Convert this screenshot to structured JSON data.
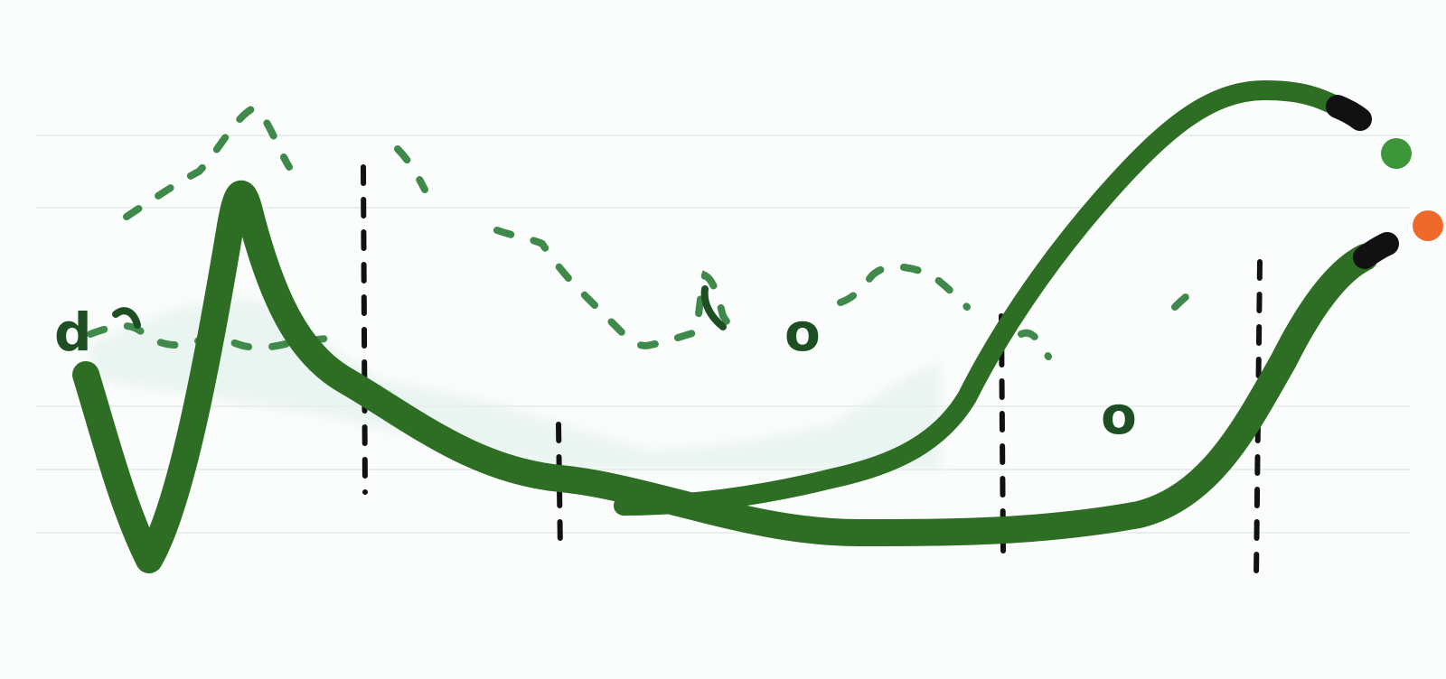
{
  "colors": {
    "background": "#fbfcfc",
    "main_stroke": "#2e6e24",
    "dashed_stroke": "#3f8a4a",
    "haze": "#9fd4c0",
    "divider": "#111111",
    "label": "#1d4f22",
    "dot_green": "#3e963b",
    "dot_orange": "#ee6a2b",
    "cap": "#111111"
  },
  "labels": {
    "glyph_left": "d",
    "glyph_middle": "o",
    "glyph_right": "o"
  }
}
